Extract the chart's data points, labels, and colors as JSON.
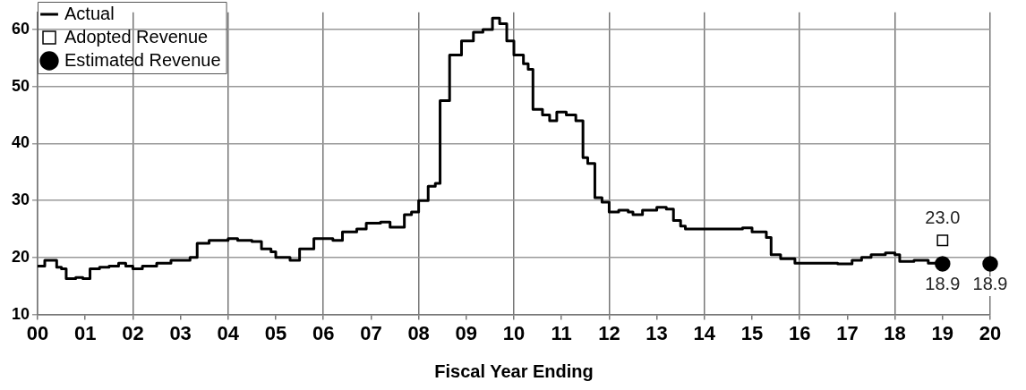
{
  "chart_data": {
    "type": "step",
    "xlabel": "Fiscal Year Ending",
    "xlim": [
      0,
      20
    ],
    "xticks": [
      {
        "value": 0,
        "label": "00"
      },
      {
        "value": 1,
        "label": "01"
      },
      {
        "value": 2,
        "label": "02"
      },
      {
        "value": 3,
        "label": "03"
      },
      {
        "value": 4,
        "label": "04"
      },
      {
        "value": 5,
        "label": "05"
      },
      {
        "value": 6,
        "label": "06"
      },
      {
        "value": 7,
        "label": "07"
      },
      {
        "value": 8,
        "label": "08"
      },
      {
        "value": 9,
        "label": "09"
      },
      {
        "value": 10,
        "label": "10"
      },
      {
        "value": 11,
        "label": "11"
      },
      {
        "value": 12,
        "label": "12"
      },
      {
        "value": 13,
        "label": "13"
      },
      {
        "value": 14,
        "label": "14"
      },
      {
        "value": 15,
        "label": "15"
      },
      {
        "value": 16,
        "label": "16"
      },
      {
        "value": 17,
        "label": "17"
      },
      {
        "value": 18,
        "label": "18"
      },
      {
        "value": 19,
        "label": "19"
      },
      {
        "value": 20,
        "label": "20"
      }
    ],
    "ylim": [
      10,
      63
    ],
    "yticks": [
      10,
      20,
      30,
      40,
      50,
      60
    ],
    "grid": true,
    "legend": "top left",
    "series": [
      {
        "name": "Actual",
        "color": "#000000",
        "marker": "none",
        "x": [
          0,
          0.15,
          0.4,
          0.5,
          0.6,
          0.8,
          0.95,
          1.1,
          1.3,
          1.5,
          1.7,
          1.85,
          2.0,
          2.2,
          2.5,
          2.8,
          3.1,
          3.2,
          3.35,
          3.6,
          4.0,
          4.2,
          4.5,
          4.7,
          4.9,
          5.0,
          5.3,
          5.5,
          5.8,
          6.2,
          6.4,
          6.7,
          6.9,
          7.2,
          7.4,
          7.7,
          7.85,
          8.0,
          8.2,
          8.35,
          8.45,
          8.65,
          8.9,
          9.15,
          9.35,
          9.55,
          9.7,
          9.85,
          10.0,
          10.2,
          10.3,
          10.4,
          10.6,
          10.75,
          10.9,
          11.1,
          11.3,
          11.45,
          11.55,
          11.7,
          11.85,
          12.0,
          12.2,
          12.4,
          12.5,
          12.7,
          13.0,
          13.2,
          13.35,
          13.5,
          13.6,
          14.8,
          15.0,
          15.3,
          15.4,
          15.6,
          15.9,
          16.5,
          16.8,
          17.1,
          17.3,
          17.5,
          17.8,
          18.0,
          18.1,
          18.4,
          18.7,
          18.85
        ],
        "values": [
          18.5,
          19.5,
          18.3,
          18,
          16.3,
          16.5,
          16.3,
          18,
          18.3,
          18.5,
          19,
          18.5,
          18,
          18.5,
          19,
          19.5,
          19.5,
          20,
          22.5,
          23,
          23.3,
          23,
          22.8,
          21.5,
          21,
          20,
          19.5,
          21.5,
          23.3,
          23,
          24.5,
          25,
          26,
          26.2,
          25.3,
          27.5,
          28,
          30,
          32.5,
          33,
          47.5,
          55.5,
          58,
          59.5,
          60,
          62,
          61,
          58,
          55.5,
          54,
          53,
          46,
          45,
          44,
          45.5,
          45,
          44,
          37.5,
          36.5,
          30.5,
          29.7,
          28,
          28.3,
          28,
          27.5,
          28.3,
          28.8,
          28.5,
          26.5,
          25.5,
          25,
          25.2,
          24.5,
          23.5,
          20.5,
          19.8,
          19,
          19,
          18.9,
          19.5,
          20,
          20.5,
          20.8,
          20.5,
          19.3,
          19.5,
          19,
          18.9
        ]
      },
      {
        "name": "Adopted Revenue",
        "type": "scatter",
        "color": "#000000",
        "marker": "square",
        "x": [
          19
        ],
        "values": [
          23.0
        ],
        "value_labels": [
          "23.0"
        ]
      },
      {
        "name": "Estimated Revenue",
        "type": "scatter",
        "color": "#000000",
        "marker": "circle",
        "x": [
          19,
          20
        ],
        "values": [
          18.9,
          18.9
        ],
        "value_labels": [
          "18.9",
          "18.9"
        ]
      }
    ]
  }
}
